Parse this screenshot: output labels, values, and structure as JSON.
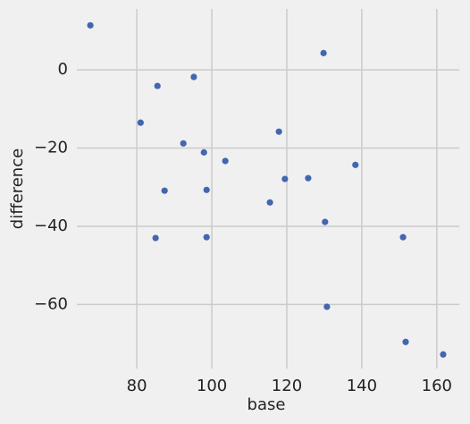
{
  "chart_data": {
    "type": "scatter",
    "xlabel": "base",
    "ylabel": "difference",
    "x": [
      67.6,
      129.8,
      85.5,
      95.2,
      81.0,
      117.9,
      92.4,
      97.9,
      103.6,
      138.3,
      119.5,
      125.7,
      87.4,
      98.6,
      115.5,
      130.2,
      85.0,
      98.6,
      151.0,
      130.7,
      151.7,
      161.7
    ],
    "values": [
      11.4,
      4.3,
      -4.1,
      -1.8,
      -13.5,
      -15.8,
      -18.8,
      -21.1,
      -23.3,
      -24.3,
      -27.9,
      -27.7,
      -30.9,
      -30.7,
      -33.9,
      -38.9,
      -43.0,
      -42.8,
      -42.8,
      -60.6,
      -69.6,
      -72.8
    ],
    "color": "#4466b0",
    "xlim": [
      64,
      166
    ],
    "xticks": [
      80,
      100,
      120,
      140,
      160
    ],
    "ylim": [
      -76.4,
      15.6
    ],
    "yticks": [
      -60,
      -40,
      -20,
      0
    ],
    "grid": true
  }
}
